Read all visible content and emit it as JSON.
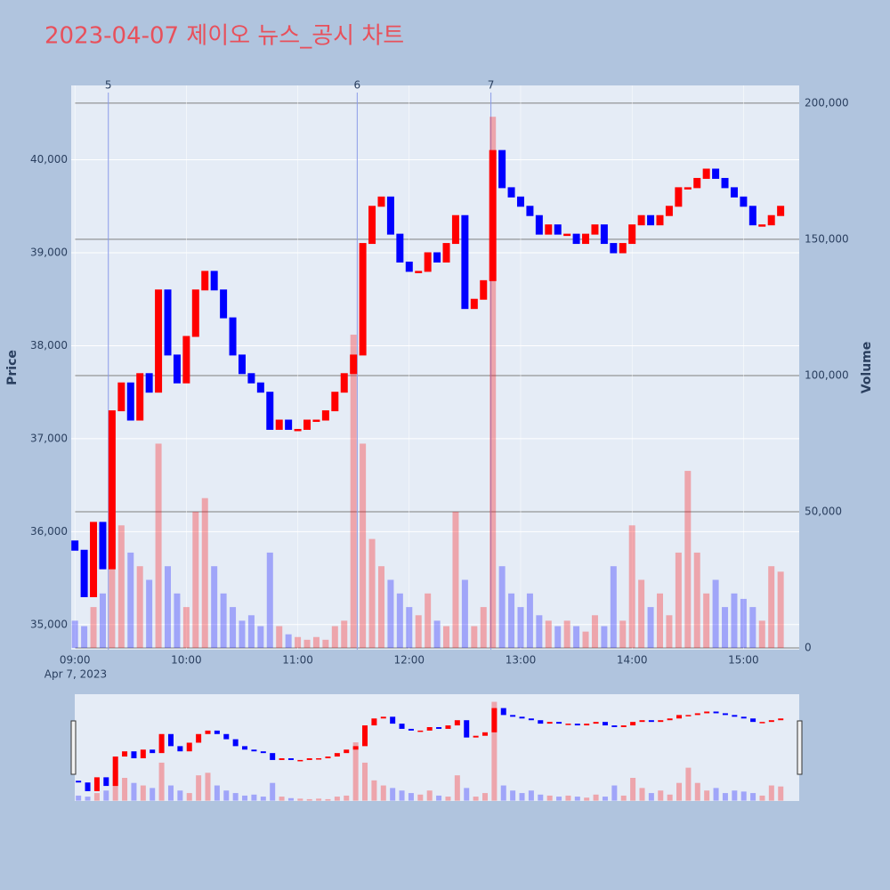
{
  "chart_data": {
    "type": "candlestick",
    "title": "2023-04-07 제이오 뉴스_공시 차트",
    "y_label": "Price",
    "y2_label": "Volume",
    "x_date_label": "Apr 7, 2023",
    "x": [
      "09:00",
      "09:05",
      "09:10",
      "09:15",
      "09:20",
      "09:25",
      "09:30",
      "09:35",
      "09:40",
      "09:45",
      "09:50",
      "09:55",
      "10:00",
      "10:05",
      "10:10",
      "10:15",
      "10:20",
      "10:25",
      "10:30",
      "10:35",
      "10:40",
      "10:45",
      "10:50",
      "10:55",
      "11:00",
      "11:05",
      "11:10",
      "11:15",
      "11:20",
      "11:25",
      "11:30",
      "11:35",
      "11:40",
      "11:45",
      "11:50",
      "11:55",
      "12:00",
      "12:05",
      "12:10",
      "12:15",
      "12:20",
      "12:25",
      "12:30",
      "12:35",
      "12:40",
      "12:45",
      "12:50",
      "12:55",
      "13:00",
      "13:05",
      "13:10",
      "13:15",
      "13:20",
      "13:25",
      "13:30",
      "13:35",
      "13:40",
      "13:45",
      "13:50",
      "13:55",
      "14:00",
      "14:05",
      "14:10",
      "14:15",
      "14:20",
      "14:25",
      "14:30",
      "14:35",
      "14:40",
      "14:45",
      "14:50",
      "14:55",
      "15:00",
      "15:05",
      "15:10",
      "15:15",
      "15:20"
    ],
    "open": [
      35900,
      35800,
      35300,
      36100,
      35600,
      37300,
      37600,
      37200,
      37700,
      37500,
      38600,
      37900,
      37600,
      38100,
      38600,
      38800,
      38600,
      38300,
      37900,
      37700,
      37600,
      37500,
      37100,
      37200,
      37100,
      37100,
      37200,
      37200,
      37300,
      37500,
      37700,
      37900,
      39100,
      39500,
      39600,
      39200,
      38900,
      38800,
      38800,
      39000,
      38900,
      39100,
      39400,
      38400,
      38500,
      38700,
      40100,
      39700,
      39600,
      39500,
      39400,
      39200,
      39300,
      39200,
      39200,
      39100,
      39200,
      39300,
      39100,
      39000,
      39100,
      39300,
      39400,
      39300,
      39400,
      39500,
      39700,
      39700,
      39800,
      39900,
      39800,
      39700,
      39600,
      39500,
      39300,
      39300,
      39400
    ],
    "close": [
      35800,
      35300,
      36100,
      35600,
      37300,
      37600,
      37200,
      37700,
      37500,
      38600,
      37900,
      37600,
      38100,
      38600,
      38800,
      38600,
      38300,
      37900,
      37700,
      37600,
      37500,
      37100,
      37200,
      37100,
      37100,
      37200,
      37200,
      37300,
      37500,
      37700,
      37900,
      39100,
      39500,
      39600,
      39200,
      38900,
      38800,
      38800,
      39000,
      38900,
      39100,
      39400,
      38400,
      38500,
      38700,
      40100,
      39700,
      39600,
      39500,
      39400,
      39200,
      39300,
      39200,
      39200,
      39100,
      39200,
      39300,
      39100,
      39000,
      39100,
      39300,
      39400,
      39300,
      39400,
      39500,
      39700,
      39700,
      39800,
      39900,
      39800,
      39700,
      39600,
      39500,
      39300,
      39300,
      39400,
      39500
    ],
    "volume": [
      10000,
      8000,
      15000,
      20000,
      60000,
      45000,
      35000,
      30000,
      25000,
      75000,
      30000,
      20000,
      15000,
      50000,
      55000,
      30000,
      20000,
      15000,
      10000,
      12000,
      8000,
      35000,
      8000,
      5000,
      4000,
      3000,
      4000,
      3000,
      8000,
      10000,
      115000,
      75000,
      40000,
      30000,
      25000,
      20000,
      15000,
      12000,
      20000,
      10000,
      8000,
      50000,
      25000,
      8000,
      15000,
      195000,
      30000,
      20000,
      15000,
      20000,
      12000,
      10000,
      8000,
      10000,
      8000,
      6000,
      12000,
      8000,
      30000,
      10000,
      45000,
      25000,
      15000,
      20000,
      12000,
      35000,
      65000,
      35000,
      20000,
      25000,
      15000,
      20000,
      18000,
      15000,
      10000,
      30000,
      28000
    ],
    "increasing_color": "#ff0000",
    "decreasing_color": "#0000ff",
    "xlim": [
      "08:58",
      "15:30"
    ],
    "xticks": [
      "09:00",
      "10:00",
      "11:00",
      "12:00",
      "13:00",
      "14:00",
      "15:00"
    ],
    "ylim": [
      34730,
      40800
    ],
    "yticks": [
      {
        "value": 35000,
        "label": "35,000"
      },
      {
        "value": 36000,
        "label": "36,000"
      },
      {
        "value": 37000,
        "label": "37,000"
      },
      {
        "value": 38000,
        "label": "38,000"
      },
      {
        "value": 39000,
        "label": "39,000"
      },
      {
        "value": 40000,
        "label": "40,000"
      }
    ],
    "y2lim": [
      -650,
      206500
    ],
    "y2ticks": [
      0,
      {
        "value": 50000,
        "label": "50,000"
      },
      {
        "value": 100000,
        "label": "100,000"
      },
      {
        "value": 150000,
        "label": "150,000"
      },
      {
        "value": 200000,
        "label": "200,000"
      }
    ],
    "events": [
      {
        "x": "09:18",
        "label": "5"
      },
      {
        "x": "11:32",
        "label": "6"
      },
      {
        "x": "12:44",
        "label": "7"
      }
    ],
    "grid": true
  }
}
